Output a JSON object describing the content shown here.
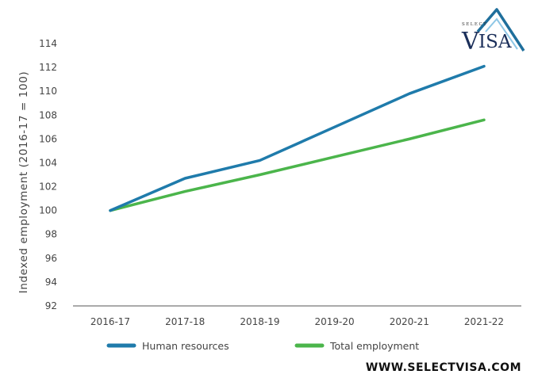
{
  "chart_data": {
    "type": "line",
    "categories": [
      "2016-17",
      "2017-18",
      "2018-19",
      "2019-20",
      "2020-21",
      "2021-22"
    ],
    "series": [
      {
        "name": "Human resources",
        "values": [
          100,
          102.7,
          104.2,
          107.0,
          109.8,
          112.1
        ],
        "color": "#1f7bab"
      },
      {
        "name": "Total employment",
        "values": [
          100,
          101.6,
          103.0,
          104.5,
          106.0,
          107.6
        ],
        "color": "#4bb54b"
      }
    ],
    "ylabel": "Indexed employment (2016-17 = 100)",
    "ylim": [
      92,
      114
    ],
    "yticks": [
      92,
      94,
      96,
      98,
      100,
      102,
      104,
      106,
      108,
      110,
      112,
      114
    ],
    "grid": false,
    "legend": "bottom"
  },
  "watermark": {
    "brand": "VISA",
    "brand_initial": "V",
    "brand_rest": "ISA",
    "brand_prefix": "SELECT",
    "website": "WWW.SELECTVISA.COM",
    "color": "#1f6f9c"
  }
}
